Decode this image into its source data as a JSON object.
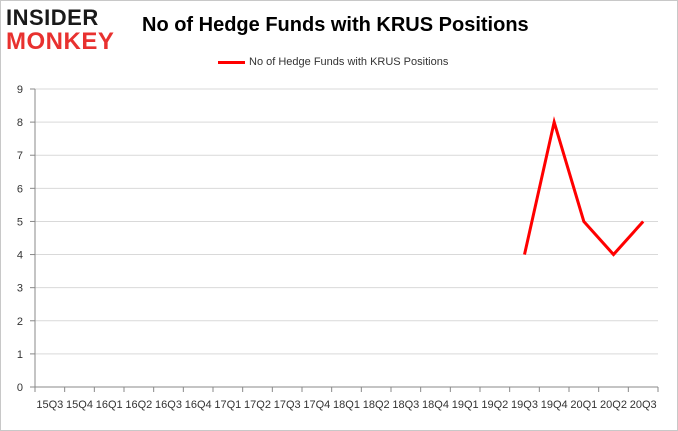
{
  "logo": {
    "line1": "INSIDER",
    "line2": "MONKEY"
  },
  "colors": {
    "series": "#ff0000",
    "grid": "#d9d9d9",
    "axis": "#888888",
    "logo_accent": "#e8312f"
  },
  "chart_data": {
    "type": "line",
    "title": "No of Hedge Funds with KRUS Positions",
    "xlabel": "",
    "ylabel": "",
    "legend_position": "top-center",
    "grid": true,
    "ylim": [
      0,
      9
    ],
    "yticks": [
      "0",
      "1",
      "2",
      "3",
      "4",
      "5",
      "6",
      "7",
      "8",
      "9"
    ],
    "categories": [
      "2015Q3",
      "2015Q4",
      "2016Q1",
      "2016Q2",
      "2016Q3",
      "2016Q4",
      "2017Q1",
      "2017Q2",
      "2017Q3",
      "2017Q4",
      "2018Q1",
      "2018Q2",
      "2018Q3",
      "2018Q4",
      "2019Q1",
      "2019Q2",
      "2019Q3",
      "2019Q4",
      "2020Q1",
      "2020Q2",
      "2020Q3"
    ],
    "xtick_labels": [
      "15Q3",
      "15Q4",
      "16Q1",
      "16Q2",
      "16Q3",
      "16Q4",
      "17Q1",
      "17Q2",
      "17Q3",
      "17Q4",
      "18Q1",
      "18Q2",
      "18Q3",
      "18Q4",
      "19Q1",
      "19Q2",
      "19Q3",
      "19Q4",
      "20Q1",
      "20Q2",
      "20Q3"
    ],
    "series": [
      {
        "name": "No of Hedge Funds with KRUS Positions",
        "values": [
          null,
          null,
          null,
          null,
          null,
          null,
          null,
          null,
          null,
          null,
          null,
          null,
          null,
          null,
          null,
          null,
          4,
          8,
          5,
          4,
          5
        ]
      }
    ]
  }
}
